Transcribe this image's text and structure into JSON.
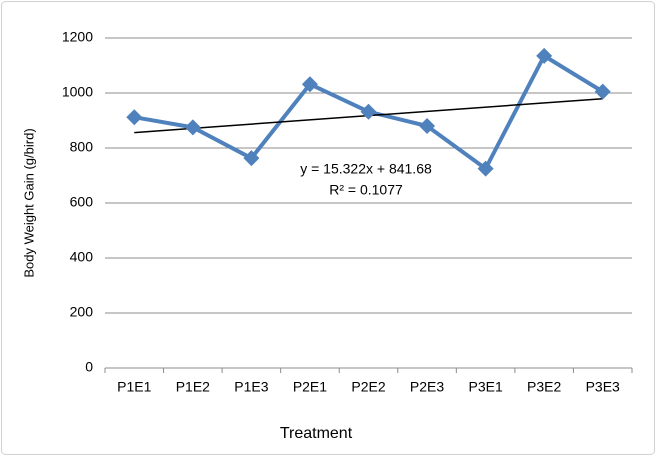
{
  "chart_data": {
    "type": "line",
    "x_label": "Treatment",
    "y_label": "Body Weight Gain (g/bird)",
    "annotations": [
      "y = 15.322x + 841.68",
      "R² = 0.1077"
    ],
    "categories": [
      "P1E1",
      "P1E2",
      "P1E3",
      "P2E1",
      "P2E2",
      "P2E3",
      "P3E1",
      "P3E2",
      "P3E3"
    ],
    "series": [
      {
        "name": "Body Weight Gain",
        "color": "#4f81bd",
        "values": [
          912,
          875,
          763,
          1032,
          932,
          880,
          725,
          1135,
          1005
        ]
      }
    ],
    "trendline": true,
    "ylim": [
      0,
      1200
    ],
    "yticks": [
      0,
      200,
      400,
      600,
      800,
      1000,
      1200
    ],
    "grid": true
  }
}
